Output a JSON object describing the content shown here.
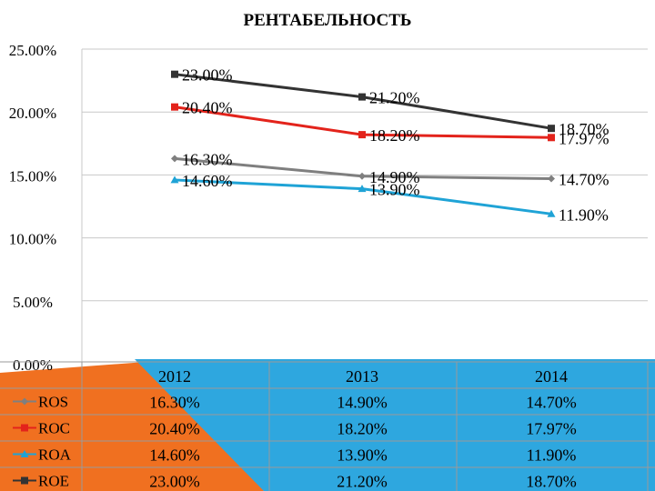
{
  "chart_data": {
    "type": "line",
    "title": "РЕНТАБЕЛЬНОСТЬ",
    "categories": [
      "2012",
      "2013",
      "2014"
    ],
    "ylim": [
      0,
      25
    ],
    "yticks": [
      "0.00%",
      "5.00%",
      "10.00%",
      "15.00%",
      "20.00%",
      "25.00%"
    ],
    "grid": true,
    "legend_placement": "data-table-left",
    "series": [
      {
        "name": "ROS",
        "values": [
          16.3,
          14.9,
          14.7
        ],
        "labels": [
          "16.30%",
          "14.90%",
          "14.70%"
        ],
        "color": "#7f7f7f",
        "marker": "diamond"
      },
      {
        "name": "ROC",
        "values": [
          20.4,
          18.2,
          17.97
        ],
        "labels": [
          "20.40%",
          "18.20%",
          "17.97%"
        ],
        "color": "#e3231b",
        "marker": "square"
      },
      {
        "name": "ROA",
        "values": [
          14.6,
          13.9,
          11.9
        ],
        "labels": [
          "14.60%",
          "13.90%",
          "11.90%"
        ],
        "color": "#1fa3d6",
        "marker": "triangle"
      },
      {
        "name": "ROE",
        "values": [
          23.0,
          21.2,
          18.7
        ],
        "labels": [
          "23.00%",
          "21.20%",
          "18.70%"
        ],
        "color": "#333333",
        "marker": "square"
      }
    ]
  },
  "decor": {
    "accent_orange": "#f07020",
    "accent_blue": "#2ea7df"
  }
}
